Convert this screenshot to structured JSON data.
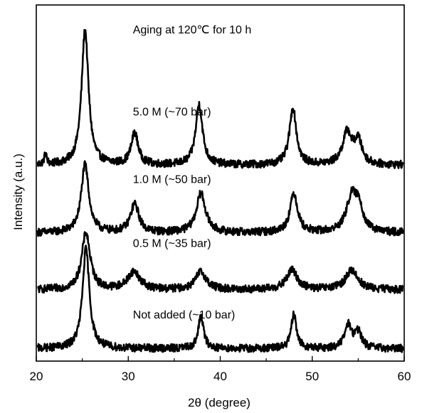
{
  "chart_data": {
    "type": "line",
    "title": "",
    "xlabel": "2θ (degree)",
    "ylabel": "Intensity (a.u.)",
    "xlim": [
      20,
      60
    ],
    "ylim": [
      0,
      10
    ],
    "x_ticks": [
      20,
      30,
      40,
      50,
      60
    ],
    "y_ticks_shown": false,
    "grid": false,
    "legend": "none",
    "annotations": [
      {
        "text": "Aging at 120℃ for 10 h",
        "x": 30.5,
        "y": 9.2
      },
      {
        "text": "5.0 M (~70 bar)",
        "x": 30.5,
        "y": 6.9
      },
      {
        "text": "1.0 M (~50 bar)",
        "x": 30.5,
        "y": 5.0
      },
      {
        "text": "0.5 M (~35 bar)",
        "x": 30.5,
        "y": 3.2
      },
      {
        "text": "Not added (~10 bar)",
        "x": 30.5,
        "y": 1.2
      }
    ],
    "series": [
      {
        "name": "5.0 M (~70 bar)",
        "baseline": 5.5,
        "peaks": [
          {
            "x": 21.0,
            "height": 0.3,
            "width": 0.15
          },
          {
            "x": 25.3,
            "height": 3.8,
            "width": 0.45
          },
          {
            "x": 30.7,
            "height": 0.9,
            "width": 0.45
          },
          {
            "x": 37.7,
            "height": 1.7,
            "width": 0.45
          },
          {
            "x": 47.9,
            "height": 1.6,
            "width": 0.45
          },
          {
            "x": 53.8,
            "height": 0.9,
            "width": 0.6
          },
          {
            "x": 55.0,
            "height": 0.65,
            "width": 0.5
          }
        ]
      },
      {
        "name": "1.0 M (~50 bar)",
        "baseline": 3.6,
        "peaks": [
          {
            "x": 25.3,
            "height": 1.9,
            "width": 0.5
          },
          {
            "x": 30.7,
            "height": 0.8,
            "width": 0.55
          },
          {
            "x": 37.9,
            "height": 1.1,
            "width": 0.6
          },
          {
            "x": 48.0,
            "height": 1.1,
            "width": 0.5
          },
          {
            "x": 54.3,
            "height": 1.0,
            "width": 0.7
          },
          {
            "x": 55.1,
            "height": 0.6,
            "width": 0.5
          }
        ]
      },
      {
        "name": "0.5 M (~35 bar)",
        "baseline": 2.0,
        "peaks": [
          {
            "x": 25.4,
            "height": 1.6,
            "width": 0.55
          },
          {
            "x": 30.6,
            "height": 0.5,
            "width": 0.8
          },
          {
            "x": 37.9,
            "height": 0.5,
            "width": 0.7
          },
          {
            "x": 47.8,
            "height": 0.55,
            "width": 0.7
          },
          {
            "x": 54.3,
            "height": 0.55,
            "width": 0.8
          }
        ]
      },
      {
        "name": "Not added (~10 bar)",
        "baseline": 0.35,
        "peaks": [
          {
            "x": 25.4,
            "height": 2.8,
            "width": 0.45
          },
          {
            "x": 37.9,
            "height": 0.9,
            "width": 0.35
          },
          {
            "x": 48.0,
            "height": 0.95,
            "width": 0.35
          },
          {
            "x": 53.9,
            "height": 0.65,
            "width": 0.45
          },
          {
            "x": 55.0,
            "height": 0.45,
            "width": 0.45
          }
        ]
      }
    ]
  }
}
